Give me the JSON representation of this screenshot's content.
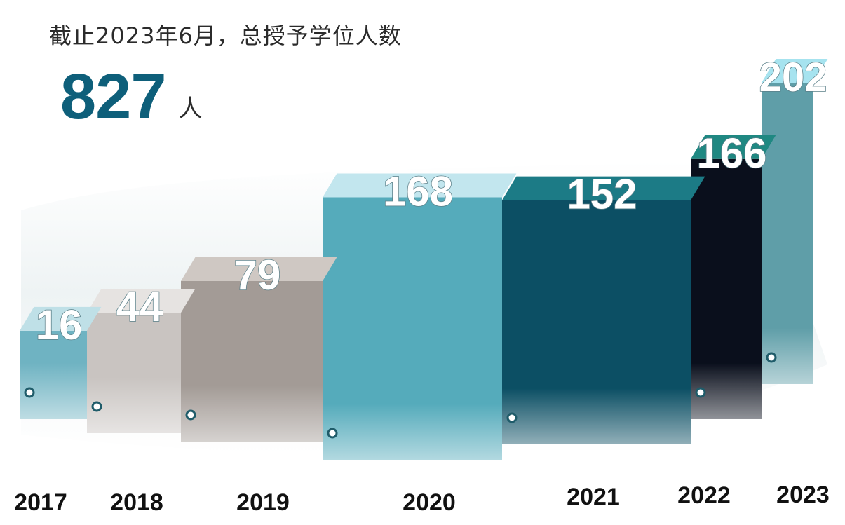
{
  "header": {
    "caption": "截止2023年6月，总授予学位人数",
    "total_value": "827",
    "total_unit": "人"
  },
  "colors": {
    "total": "#0e5f7a",
    "bars": [
      "#6fb3c2",
      "#c9c4c1",
      "#a39b96",
      "#55abbb",
      "#0c4f64",
      "#0a0f1c",
      "#5f9ea8"
    ],
    "tops": [
      "#bfe0e7",
      "#e6e3e1",
      "#cfc8c3",
      "#c2e6ee",
      "#1c7b86",
      "#1f8882",
      "#a6e3ef"
    ]
  },
  "chart_data": {
    "type": "bar",
    "style": "3d",
    "categories": [
      "2017",
      "2018",
      "2019",
      "2020",
      "2021",
      "2022",
      "2023"
    ],
    "values": [
      16,
      44,
      79,
      168,
      152,
      166,
      202
    ],
    "labels": [
      "16",
      "44",
      "79",
      "168",
      "152",
      "166",
      "202"
    ]
  }
}
